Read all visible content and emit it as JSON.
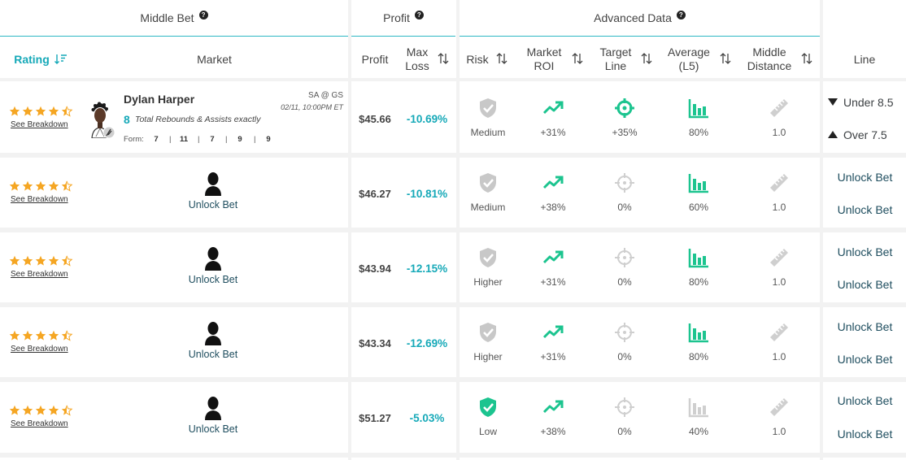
{
  "groups": {
    "middle_bet": "Middle Bet",
    "profit": "Profit",
    "advanced": "Advanced Data",
    "help_glyph": "?"
  },
  "headers": {
    "rating": "Rating",
    "market": "Market",
    "profit": "Profit",
    "max_loss": [
      "Max",
      "Loss"
    ],
    "risk": "Risk",
    "market_roi": [
      "Market",
      "ROI"
    ],
    "target_line": [
      "Target",
      "Line"
    ],
    "average": [
      "Average",
      "(L5)"
    ],
    "middle_distance": [
      "Middle",
      "Distance"
    ],
    "line": "Line"
  },
  "colors": {
    "accent": "#16a9b8",
    "green": "#1cc48f",
    "star": "#f5a623",
    "grey_icon": "#c8c8c8"
  },
  "rows": [
    {
      "rating": 4.5,
      "see_breakdown": "See Breakdown",
      "player": {
        "name": "Dylan Harper",
        "matchup": "SA @ GS",
        "time": "02/11, 10:00PM ET",
        "bet_number": "8",
        "bet_desc": "Total Rebounds & Assists exactly",
        "form_label": "Form:",
        "form": [
          "7",
          "11",
          "7",
          "9",
          "9"
        ]
      },
      "profit": "$45.66",
      "max_loss": "-10.69%",
      "risk": {
        "label": "Medium",
        "icon": "shield-icon",
        "level": "medium"
      },
      "market_roi": "+31%",
      "target_line": {
        "value": "+35%",
        "active": true
      },
      "average": {
        "value": "80%",
        "level": 0.8
      },
      "middle_distance": "1.0",
      "lines": [
        "Under 8.5",
        "Over 7.5"
      ]
    },
    {
      "rating": 4.5,
      "see_breakdown": "See Breakdown",
      "unlock": "Unlock Bet",
      "profit": "$46.27",
      "max_loss": "-10.81%",
      "risk": {
        "label": "Medium",
        "icon": "shield-icon",
        "level": "medium"
      },
      "market_roi": "+38%",
      "target_line": {
        "value": "0%",
        "active": false
      },
      "average": {
        "value": "60%",
        "level": 0.6
      },
      "middle_distance": "1.0",
      "lines": [
        "Unlock Bet",
        "Unlock Bet"
      ]
    },
    {
      "rating": 4.5,
      "see_breakdown": "See Breakdown",
      "unlock": "Unlock Bet",
      "profit": "$43.94",
      "max_loss": "-12.15%",
      "risk": {
        "label": "Higher",
        "icon": "shield-icon",
        "level": "higher"
      },
      "market_roi": "+31%",
      "target_line": {
        "value": "0%",
        "active": false
      },
      "average": {
        "value": "80%",
        "level": 0.8
      },
      "middle_distance": "1.0",
      "lines": [
        "Unlock Bet",
        "Unlock Bet"
      ]
    },
    {
      "rating": 4.5,
      "see_breakdown": "See Breakdown",
      "unlock": "Unlock Bet",
      "profit": "$43.34",
      "max_loss": "-12.69%",
      "risk": {
        "label": "Higher",
        "icon": "shield-icon",
        "level": "higher"
      },
      "market_roi": "+31%",
      "target_line": {
        "value": "0%",
        "active": false
      },
      "average": {
        "value": "80%",
        "level": 0.8
      },
      "middle_distance": "1.0",
      "lines": [
        "Unlock Bet",
        "Unlock Bet"
      ]
    },
    {
      "rating": 4.5,
      "see_breakdown": "See Breakdown",
      "unlock": "Unlock Bet",
      "profit": "$51.27",
      "max_loss": "-5.03%",
      "risk": {
        "label": "Low",
        "icon": "shield-check-icon",
        "level": "low"
      },
      "market_roi": "+38%",
      "target_line": {
        "value": "0%",
        "active": false
      },
      "average": {
        "value": "40%",
        "level": 0.4
      },
      "middle_distance": "1.0",
      "lines": [
        "Unlock Bet",
        "Unlock Bet"
      ]
    }
  ]
}
